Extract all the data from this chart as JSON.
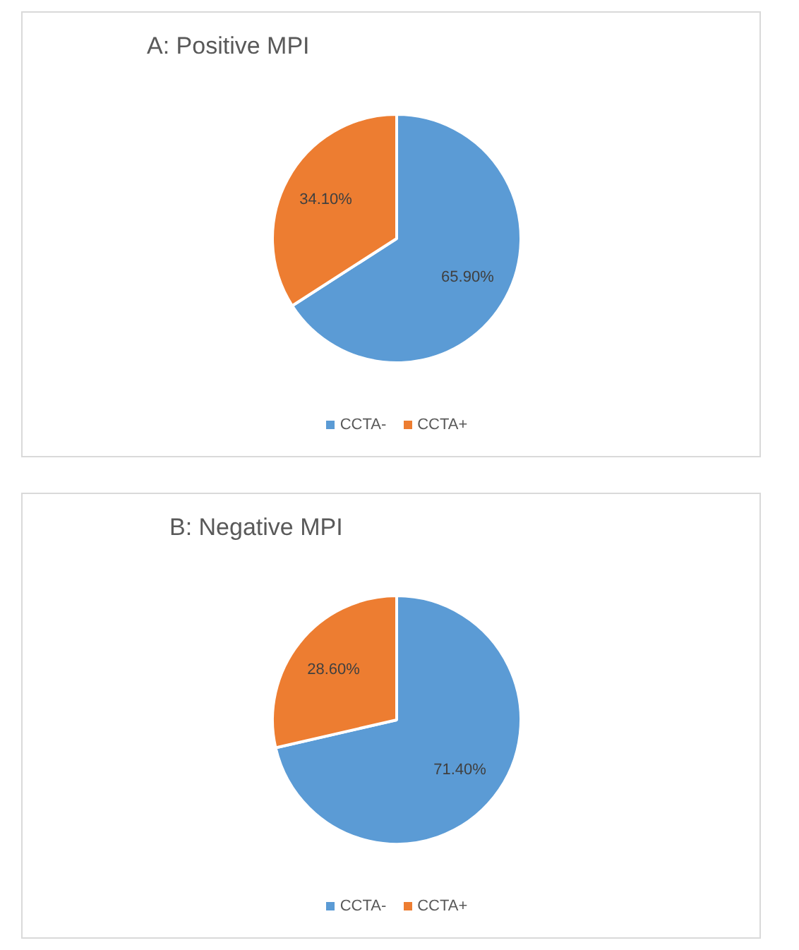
{
  "chart_data": [
    {
      "type": "pie",
      "title": "A: Positive MPI",
      "categories": [
        "CCTA-",
        "CCTA+"
      ],
      "values": [
        65.9,
        34.1
      ],
      "colors": [
        "#5b9bd5",
        "#ed7d31"
      ],
      "value_labels": [
        "65.90%",
        "34.10%"
      ],
      "legend": "bottom"
    },
    {
      "type": "pie",
      "title": "B: Negative MPI",
      "categories": [
        "CCTA-",
        "CCTA+"
      ],
      "values": [
        71.4,
        28.6
      ],
      "colors": [
        "#5b9bd5",
        "#ed7d31"
      ],
      "value_labels": [
        "71.40%",
        "28.60%"
      ],
      "legend": "bottom"
    }
  ]
}
